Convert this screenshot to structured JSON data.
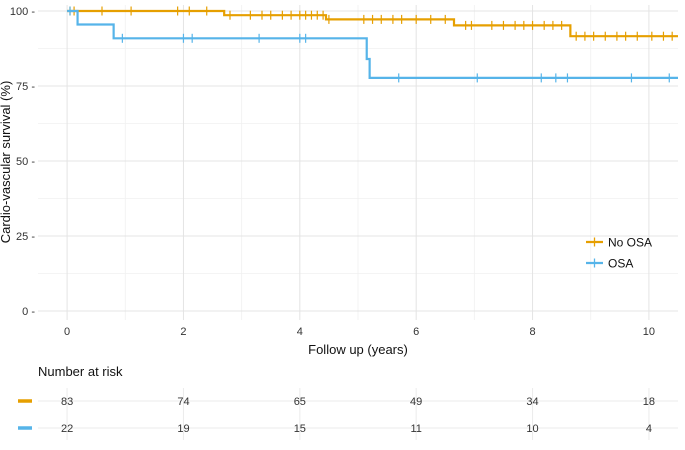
{
  "chart_data": {
    "type": "line",
    "subtype": "kaplan-meier",
    "title": "",
    "xlabel": "Follow up (years)",
    "ylabel": "Cardio-vascular survival (%)",
    "xlim": [
      -0.5,
      10.5
    ],
    "ylim": [
      -3,
      102
    ],
    "x_ticks": [
      0,
      2,
      4,
      6,
      8,
      10
    ],
    "y_ticks": [
      0,
      25,
      50,
      75,
      100
    ],
    "y_tick_labels": [
      "0 -",
      "25 -",
      "50 -",
      "75 -",
      "100 -"
    ],
    "grid": true,
    "legend_position": "bottom-right",
    "series": [
      {
        "name": "No OSA",
        "color": "#E69F00",
        "steps": [
          [
            0,
            100
          ],
          [
            2.7,
            98.6
          ],
          [
            4.45,
            97.2
          ],
          [
            6.65,
            95.2
          ],
          [
            8.65,
            91.6
          ]
        ],
        "censored": [
          0.05,
          0.12,
          0.6,
          1.1,
          1.9,
          2.1,
          2.4,
          2.8,
          3.15,
          3.35,
          3.5,
          3.7,
          3.85,
          4.0,
          4.1,
          4.2,
          4.3,
          4.4,
          4.5,
          5.1,
          5.25,
          5.4,
          5.6,
          5.75,
          6.0,
          6.25,
          6.5,
          6.85,
          6.95,
          7.3,
          7.5,
          7.7,
          7.85,
          8.0,
          8.2,
          8.35,
          8.5,
          8.75,
          8.9,
          9.05,
          9.25,
          9.45,
          9.6,
          9.8,
          10.05,
          10.25,
          10.4
        ]
      },
      {
        "name": "OSA",
        "color": "#56B4E9",
        "steps": [
          [
            0,
            100
          ],
          [
            0.18,
            95.5
          ],
          [
            0.8,
            90.9
          ],
          [
            5.15,
            84.0
          ],
          [
            5.2,
            77.7
          ]
        ],
        "censored": [
          0.05,
          0.95,
          2.0,
          2.15,
          3.3,
          4.0,
          4.1,
          5.7,
          7.05,
          8.15,
          8.4,
          8.6,
          9.7,
          10.35
        ]
      }
    ],
    "risk_table": {
      "title": "Number at risk",
      "times": [
        0,
        2,
        4,
        6,
        8,
        10
      ],
      "rows": [
        {
          "group": "No OSA",
          "color": "#E69F00",
          "values": [
            "83",
            "74",
            "65",
            "49",
            "34",
            "18"
          ]
        },
        {
          "group": "OSA",
          "color": "#56B4E9",
          "values": [
            "22",
            "19",
            "15",
            "11",
            "10",
            "4"
          ]
        }
      ]
    }
  }
}
